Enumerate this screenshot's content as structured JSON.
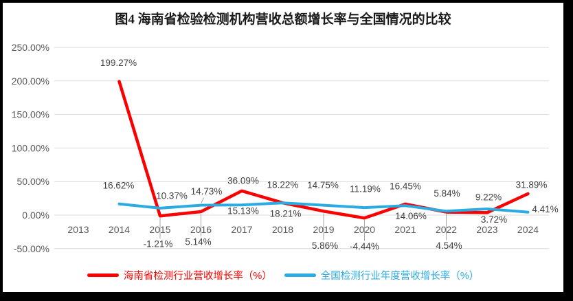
{
  "window": {
    "background": "#000000",
    "panel_background": "#ffffff"
  },
  "chart_data": {
    "type": "line",
    "title": "图4 海南省检验检测机构营收总额增长率与全国情况的比较",
    "categories": [
      "2013",
      "2014",
      "2015",
      "2016",
      "2017",
      "2018",
      "2019",
      "2020",
      "2021",
      "2022",
      "2023",
      "2024"
    ],
    "ylim": [
      -50,
      250
    ],
    "ytick_step": 50,
    "grid": true,
    "legend_position": "bottom",
    "yticks": [
      {
        "value": 250,
        "label": "250.00%"
      },
      {
        "value": 200,
        "label": "200.00%"
      },
      {
        "value": 150,
        "label": "150.00%"
      },
      {
        "value": 100,
        "label": "100.00%"
      },
      {
        "value": 50,
        "label": "50.00%"
      },
      {
        "value": 0,
        "label": "0.00%"
      },
      {
        "value": -50,
        "label": "-50.00%"
      }
    ],
    "colors": {
      "grid": "#d9d9d9",
      "axis_text": "#595959",
      "label_text": "#404040",
      "leader": "#a6a6a6"
    },
    "series": [
      {
        "name": "海南省检测行业营收增长率（%）",
        "color": "#fb0000",
        "stroke_width": 4.5,
        "values": [
          null,
          199.27,
          -1.21,
          5.14,
          36.09,
          18.21,
          5.86,
          -4.44,
          16.45,
          4.54,
          3.72,
          31.89
        ],
        "point_labels": [
          null,
          {
            "text": "199.27%",
            "dx": -1,
            "dy": -27
          },
          {
            "text": "-1.21%",
            "dx": -3,
            "dy": 41,
            "leader": "v"
          },
          {
            "text": "5.14%",
            "dx": -4,
            "dy": 44,
            "leader": "v"
          },
          {
            "text": "36.09%",
            "dx": 2,
            "dy": -15
          },
          {
            "text": "18.21%",
            "dx": 4,
            "dy": 16
          },
          {
            "text": "5.86%",
            "dx": 2,
            "dy": 50,
            "leader": "v"
          },
          {
            "text": "-4.44%",
            "dx": 0,
            "dy": 41,
            "leader": "v"
          },
          {
            "text": "16.45%",
            "dx": 0,
            "dy": -26
          },
          {
            "text": "4.54%",
            "dx": 4,
            "dy": 49,
            "leader": "v"
          },
          {
            "text": "3.72%",
            "dx": 10,
            "dy": 10
          },
          {
            "text": "31.89%",
            "dx": 5,
            "dy": -13
          }
        ]
      },
      {
        "name": "全国检测行业年度营收增长率（%）",
        "color": "#2aabe2",
        "stroke_width": 4,
        "values": [
          null,
          16.62,
          10.37,
          14.73,
          15.13,
          18.22,
          14.75,
          11.19,
          14.06,
          5.84,
          9.22,
          4.41
        ],
        "point_labels": [
          null,
          {
            "text": "16.62%",
            "dx": -1,
            "dy": -27
          },
          {
            "text": "10.37%",
            "dx": 17,
            "dy": -18
          },
          {
            "text": "14.73%",
            "dx": 8,
            "dy": -20,
            "leader": "d"
          },
          {
            "text": "15.13%",
            "dx": 2,
            "dy": 9
          },
          {
            "text": "18.22%",
            "dx": 0,
            "dy": -26
          },
          {
            "text": "14.75%",
            "dx": -1,
            "dy": -29
          },
          {
            "text": "11.19%",
            "dx": 1,
            "dy": -27
          },
          {
            "text": "14.06%",
            "dx": 8,
            "dy": 15
          },
          {
            "text": "5.84%",
            "dx": 1,
            "dy": -26
          },
          {
            "text": "9.22%",
            "dx": 2,
            "dy": -17
          },
          {
            "text": "4.41%",
            "dx": 25,
            "dy": -4
          }
        ]
      }
    ]
  }
}
